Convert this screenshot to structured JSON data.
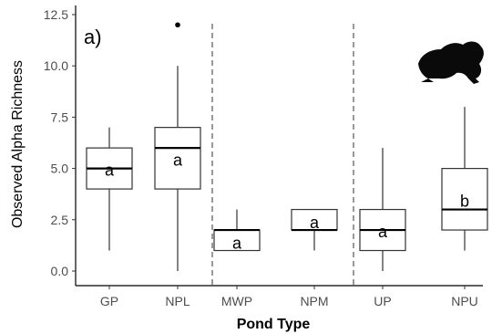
{
  "chart_data": {
    "type": "box",
    "panel_label": "a)",
    "xlabel": "Pond Type",
    "ylabel": "Observed Alpha Richness",
    "ylim": [
      -0.7,
      12.7
    ],
    "yticks": [
      "0.0",
      "2.5",
      "5.0",
      "7.5",
      "10.0",
      "12.5"
    ],
    "categories": [
      "GP",
      "NPL",
      "MWP",
      "NPM",
      "UP",
      "NPU"
    ],
    "boxes": [
      {
        "category": "GP",
        "whisker_low": 1,
        "q1": 4,
        "median": 5,
        "q3": 6,
        "whisker_high": 7,
        "outliers": [],
        "group": "a"
      },
      {
        "category": "NPL",
        "whisker_low": 0,
        "q1": 4,
        "median": 6,
        "q3": 7,
        "whisker_high": 10,
        "outliers": [
          12
        ],
        "group": "a"
      },
      {
        "category": "MWP",
        "whisker_low": 1,
        "q1": 1,
        "median": 2,
        "q3": 2,
        "whisker_high": 3,
        "outliers": [],
        "group": "a"
      },
      {
        "category": "NPM",
        "whisker_low": 1,
        "q1": 2,
        "median": 2,
        "q3": 3,
        "whisker_high": 3,
        "outliers": [],
        "group": "a"
      },
      {
        "category": "UP",
        "whisker_low": 0,
        "q1": 1,
        "median": 2,
        "q3": 3,
        "whisker_high": 6,
        "outliers": [],
        "group": "a"
      },
      {
        "category": "NPU",
        "whisker_low": 1,
        "q1": 2,
        "median": 3,
        "q3": 5,
        "whisker_high": 8,
        "outliers": [],
        "group": "b"
      }
    ],
    "group_separators": "dashed vertical lines between pairs",
    "grid": false,
    "icon": "frog-silhouette-icon"
  }
}
